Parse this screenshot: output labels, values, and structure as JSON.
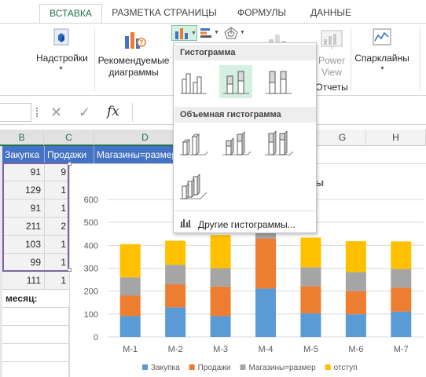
{
  "ribbon_tabs": [
    {
      "label": "ВСТАВКА",
      "active": true
    },
    {
      "label": "РАЗМЕТКА СТРАНИЦЫ",
      "active": false
    },
    {
      "label": "ФОРМУЛЫ",
      "active": false
    },
    {
      "label": "ДАННЫЕ",
      "active": false
    }
  ],
  "ribbon": {
    "addins_label": "Надстройки",
    "recommended_line1": "Рекомендуемые",
    "recommended_line2": "диаграммы",
    "power_view_line1": "Power",
    "power_view_line2": "View",
    "reports_group": "Отчеты",
    "sparklines_label": "Спарклайны",
    "accent_color": "#217346"
  },
  "formula_bar": {
    "cancel_symbol": "✕",
    "enter_symbol": "✓",
    "fx_symbol": "fx",
    "value": ""
  },
  "sheet": {
    "columns": [
      "B",
      "C",
      "D",
      "E",
      "F",
      "G",
      "H"
    ],
    "header_row": [
      "Закупка",
      "Продажи",
      "Магазины=размер"
    ],
    "rows": [
      [
        "91",
        "9"
      ],
      [
        "129",
        "1"
      ],
      [
        "91",
        "1"
      ],
      [
        "211",
        "2"
      ],
      [
        "103",
        "1"
      ],
      [
        "99",
        "1"
      ],
      [
        "111",
        "1"
      ]
    ],
    "label_cell": "месяц:"
  },
  "dropdown": {
    "section_histogram": "Гистограмма",
    "section_3d_histogram": "Объемная гистограмма",
    "more_link": "Другие гистограммы..."
  },
  "chart_title_fragment": "ы",
  "chart_data": {
    "type": "bar",
    "stacked": true,
    "categories": [
      "М-1",
      "М-2",
      "М-3",
      "М-4",
      "М-5",
      "М-6",
      "М-7"
    ],
    "series": [
      {
        "name": "Закупка",
        "color": "#5b9bd5",
        "values": [
          91,
          129,
          91,
          211,
          103,
          99,
          111
        ]
      },
      {
        "name": "Продажи",
        "color": "#ed7d31",
        "values": [
          89,
          101,
          129,
          219,
          119,
          101,
          104
        ]
      },
      {
        "name": "Магазины=размер",
        "color": "#a5a5a5",
        "values": [
          80,
          85,
          80,
          25,
          82,
          83,
          82
        ]
      },
      {
        "name": "отступ",
        "color": "#ffc000",
        "values": [
          145,
          105,
          145,
          150,
          130,
          135,
          120
        ]
      }
    ],
    "ylim": [
      0,
      600
    ],
    "yticks": [
      0,
      100,
      200,
      300,
      400,
      500,
      600
    ],
    "grid": true,
    "legend": "bottom"
  }
}
